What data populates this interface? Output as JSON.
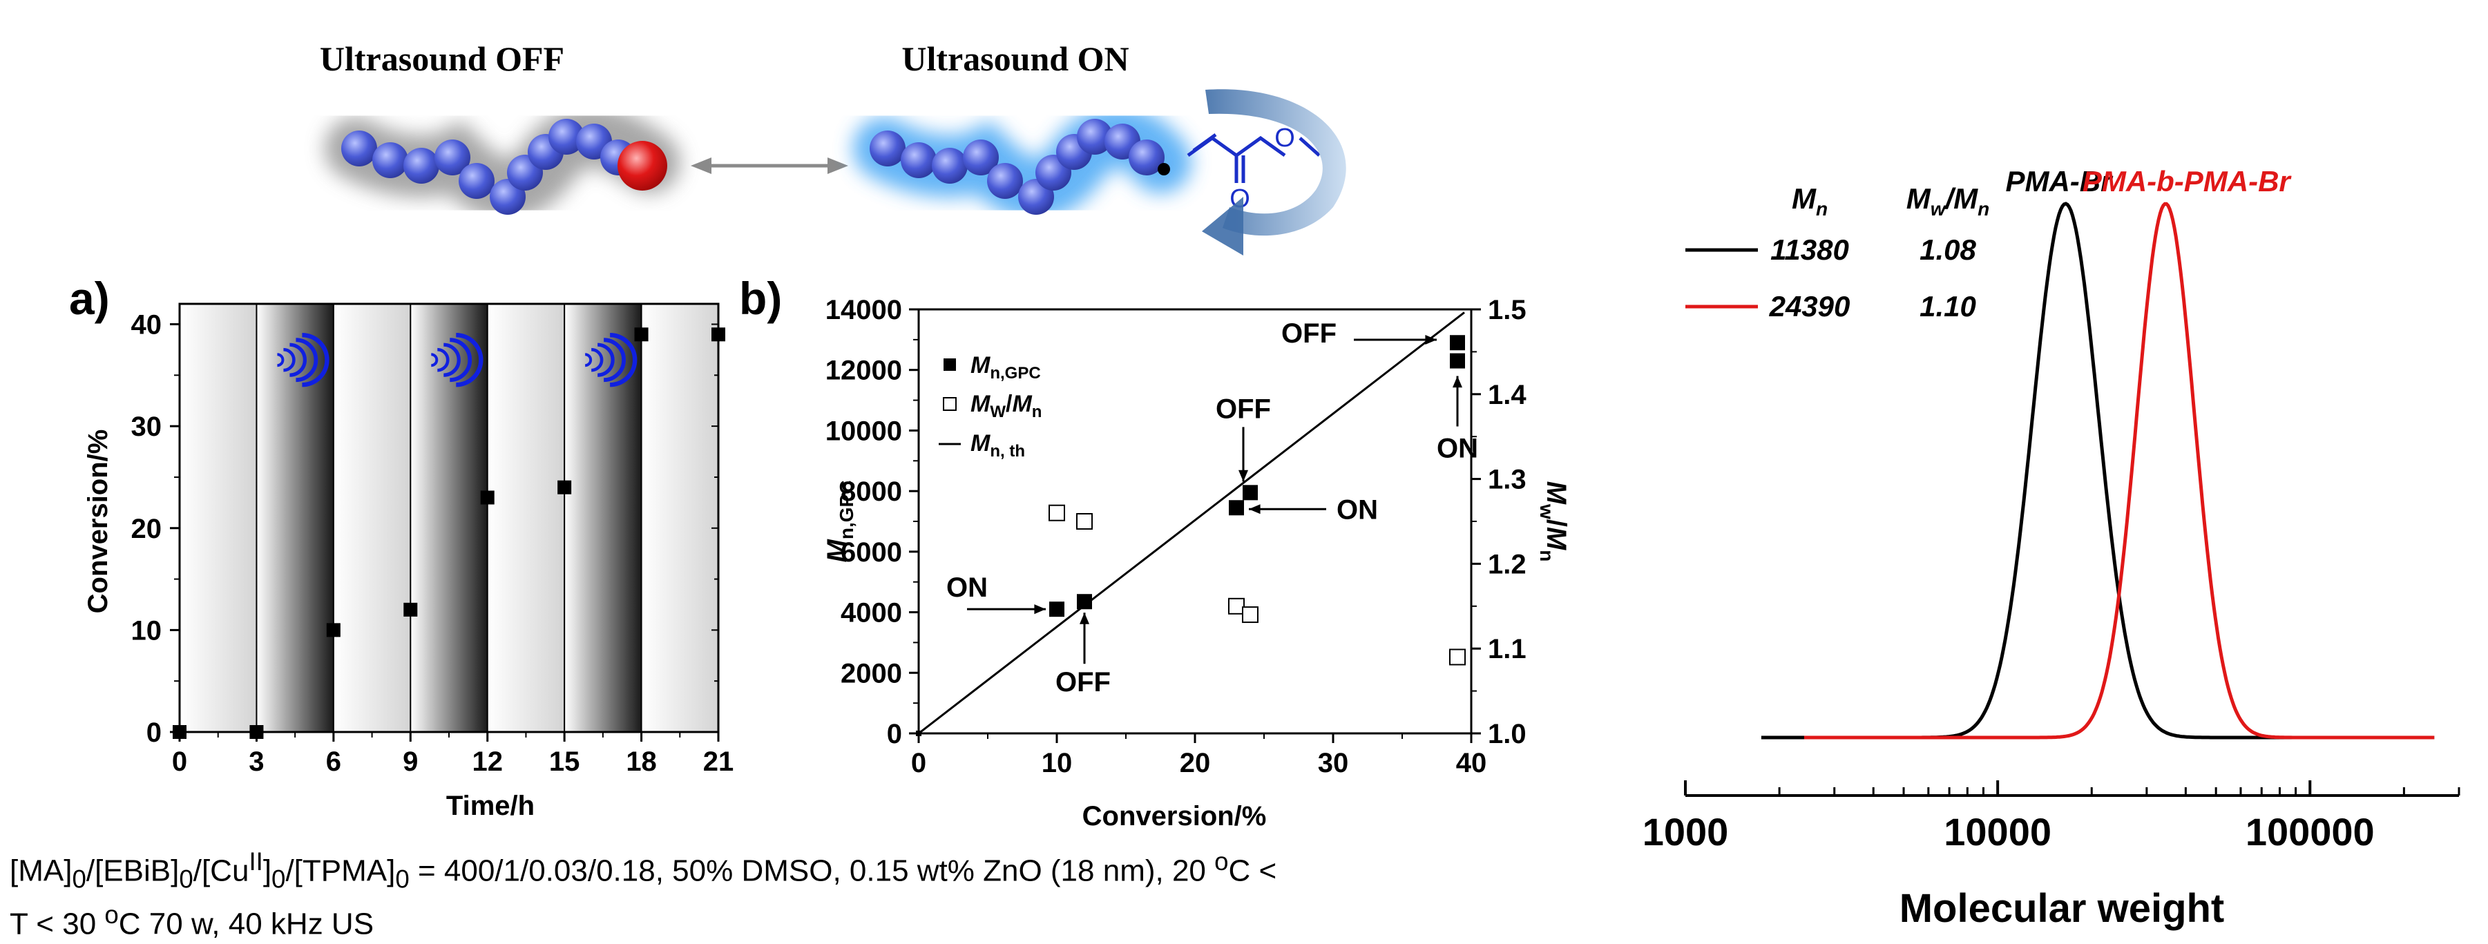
{
  "scheme": {
    "label_off": "Ultrasound OFF",
    "label_on": "Ultrasound ON",
    "colors": {
      "chain": "#4a5bd6",
      "end_group": "#e01818",
      "glow_on": "#49a8f5",
      "glow_off": "#9a9a9a",
      "arrow": "#6a8fbd"
    }
  },
  "caption": {
    "text": "[MA]₀/[EBiB]₀/[Cuᴵᴵ]₀/[TPMA]₀ = 400/1/0.03/0.18, 50% DMSO, 0.15 wt% ZnO (18 nm), 20 ºC < T < 30 ºC 70 w, 40 kHz US"
  },
  "chart_data": [
    {
      "id": "a",
      "panel_label": "a)",
      "type": "scatter",
      "xlabel": "Time/h",
      "ylabel": "Conversion/%",
      "xticks": [
        0,
        3,
        6,
        9,
        12,
        15,
        18,
        21
      ],
      "yticks": [
        0,
        10,
        20,
        30,
        40
      ],
      "xlim": [
        0,
        21
      ],
      "ylim": [
        0,
        42
      ],
      "x": [
        0,
        3,
        6,
        9,
        12,
        15,
        18,
        21
      ],
      "y": [
        0,
        0,
        10,
        12,
        23,
        24,
        39,
        39
      ],
      "marker": "filled-square",
      "ultrasound_on_intervals": [
        [
          3,
          6
        ],
        [
          9,
          12
        ],
        [
          15,
          18
        ]
      ],
      "ultrasound_icon": "sound-waves-icon"
    },
    {
      "id": "b",
      "panel_label": "b)",
      "type": "scatter",
      "xlabel": "Conversion/%",
      "ylabel_left": "Mn,GPC",
      "ylabel_right": "Mw/Mn",
      "xticks": [
        0,
        10,
        20,
        30,
        40
      ],
      "yticks_left": [
        0,
        2000,
        4000,
        6000,
        8000,
        10000,
        12000,
        14000
      ],
      "yticks_right": [
        "1.0",
        "1.1",
        "1.2",
        "1.3",
        "1.4",
        "1.5"
      ],
      "xlim": [
        0,
        40
      ],
      "ylim_left": [
        0,
        14000
      ],
      "ylim_right": [
        1.0,
        1.5
      ],
      "legend": [
        "Mn,GPC",
        "MW/Mn",
        "Mn, th"
      ],
      "legend_position": "top-left",
      "series": [
        {
          "name": "Mn,GPC",
          "marker": "filled-square",
          "axis": "left",
          "x": [
            0,
            10,
            12,
            23,
            24,
            39,
            39
          ],
          "y": [
            0,
            4100,
            4350,
            7450,
            7950,
            12300,
            12900
          ]
        },
        {
          "name": "MW/Mn",
          "marker": "open-square",
          "axis": "right",
          "x": [
            10,
            12,
            23,
            24,
            39
          ],
          "y": [
            1.26,
            1.25,
            1.15,
            1.14,
            1.09
          ]
        },
        {
          "name": "Mn, th",
          "marker": "line",
          "axis": "left",
          "x": [
            0,
            39.5
          ],
          "y": [
            0,
            13900
          ]
        }
      ],
      "annotations": [
        {
          "text": "ON",
          "x": 10,
          "y": 4100,
          "pointer": "from-left"
        },
        {
          "text": "OFF",
          "x": 12,
          "y": 4350,
          "pointer": "from-below"
        },
        {
          "text": "OFF",
          "x": 23.5,
          "y": 7950,
          "pointer": "from-above"
        },
        {
          "text": "ON",
          "x": 23,
          "y": 7450,
          "pointer": "from-right"
        },
        {
          "text": "OFF",
          "x": 38,
          "y": 12950,
          "pointer": "from-left"
        },
        {
          "text": "ON",
          "x": 39,
          "y": 12300,
          "pointer": "from-below"
        }
      ]
    },
    {
      "id": "c",
      "type": "line",
      "xlabel": "Molecular weight",
      "xscale": "log",
      "xticks": [
        "1000",
        "10000",
        "100000"
      ],
      "xlim": [
        1000,
        300000
      ],
      "table_headers": [
        "Mn",
        "Mw/Mn"
      ],
      "series": [
        {
          "name": "PMA-Br",
          "color": "#000000",
          "Mn": "11380",
          "dispersity": "1.08",
          "peak_mw": 16500,
          "width_decades": 0.105,
          "start": 1750,
          "end": 250000
        },
        {
          "name": "PMA-b-PMA-Br",
          "color": "#e01818",
          "Mn": "24390",
          "dispersity": "1.10",
          "peak_mw": 34500,
          "width_decades": 0.092,
          "start": 2400,
          "end": 250000
        }
      ]
    }
  ]
}
